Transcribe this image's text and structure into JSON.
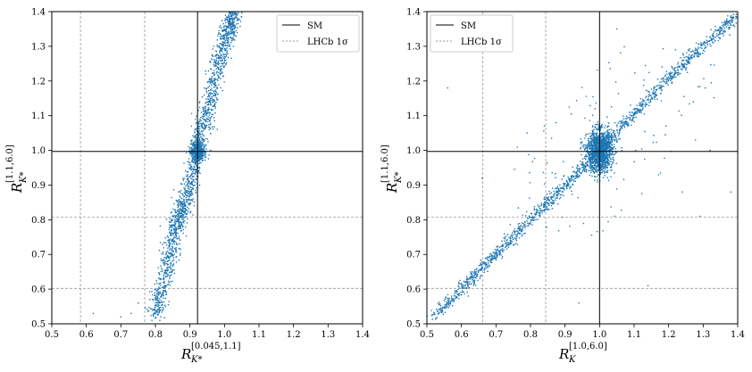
{
  "chart_data": [
    {
      "type": "scatter",
      "panel": "left",
      "xlabel": "R_{K*}^{[0.045,1.1]}",
      "ylabel": "R_{K*}^{[1.1,6.0]}",
      "xlim": [
        0.5,
        1.4
      ],
      "ylim": [
        0.5,
        1.4
      ],
      "xticks": [
        "0.5",
        "0.6",
        "0.7",
        "0.8",
        "0.9",
        "1.0",
        "1.1",
        "1.2",
        "1.3",
        "1.4"
      ],
      "yticks": [
        "0.5",
        "0.6",
        "0.7",
        "0.8",
        "0.9",
        "1.0",
        "1.1",
        "1.2",
        "1.3",
        "1.4"
      ],
      "sm_point": {
        "x": 0.922,
        "y": 0.997
      },
      "lhcb_1sigma": {
        "x": [
          0.583,
          0.769
        ],
        "y": [
          0.602,
          0.808
        ]
      },
      "point_color": "#1f77b4",
      "legend": {
        "placement": "top-right",
        "entries": [
          "SM",
          "LHCb 1σ"
        ]
      },
      "scatter_band": {
        "description": "narrow diagonal band",
        "y_at_x": [
          [
            0.8,
            0.52
          ],
          [
            0.86,
            0.78
          ],
          [
            0.9,
            0.9
          ],
          [
            0.922,
            1.0
          ],
          [
            0.96,
            1.15
          ],
          [
            1.0,
            1.32
          ],
          [
            1.03,
            1.4
          ]
        ]
      },
      "outliers": [
        [
          0.62,
          0.53
        ],
        [
          0.7,
          0.52
        ],
        [
          0.73,
          0.53
        ],
        [
          0.75,
          0.56
        ],
        [
          0.79,
          0.51
        ],
        [
          0.96,
          1.0
        ]
      ]
    },
    {
      "type": "scatter",
      "panel": "right",
      "xlabel": "R_K^{[1.0,6.0]}",
      "ylabel": "R_{K*}^{[1.1,6.0]}",
      "xlim": [
        0.5,
        1.4
      ],
      "ylim": [
        0.5,
        1.4
      ],
      "xticks": [
        "0.5",
        "0.6",
        "0.7",
        "0.8",
        "0.9",
        "1.0",
        "1.1",
        "1.2",
        "1.3",
        "1.4"
      ],
      "yticks": [
        "0.5",
        "0.6",
        "0.7",
        "0.8",
        "0.9",
        "1.0",
        "1.1",
        "1.2",
        "1.3",
        "1.4"
      ],
      "sm_point": {
        "x": 1.0,
        "y": 0.997
      },
      "lhcb_1sigma": {
        "x": [
          0.662,
          0.844
        ],
        "y": [
          0.602,
          0.808
        ]
      },
      "point_color": "#1f77b4",
      "legend": {
        "placement": "top-left",
        "entries": [
          "SM",
          "LHCb 1σ"
        ]
      },
      "scatter_band": {
        "description": "diagonal line through SM with dense cluster near (1.0, 1.0)",
        "y_at_x": [
          [
            0.52,
            0.52
          ],
          [
            0.7,
            0.7
          ],
          [
            0.9,
            0.9
          ],
          [
            1.0,
            1.0
          ],
          [
            1.2,
            1.21
          ],
          [
            1.4,
            1.39
          ]
        ]
      },
      "outliers": [
        [
          0.56,
          1.18
        ],
        [
          0.84,
          1.07
        ],
        [
          1.05,
          1.35
        ],
        [
          1.22,
          1.29
        ],
        [
          1.28,
          1.31
        ],
        [
          1.24,
          0.88
        ],
        [
          1.38,
          0.88
        ],
        [
          1.32,
          1.0
        ],
        [
          1.29,
          0.81
        ],
        [
          0.94,
          0.56
        ],
        [
          0.79,
          1.05
        ],
        [
          0.66,
          0.92
        ],
        [
          0.62,
          0.58
        ],
        [
          1.14,
          0.61
        ]
      ]
    }
  ],
  "legend": {
    "sm_label": "SM",
    "lhcb_label": "LHCb 1σ"
  },
  "axes": {
    "left": {
      "xlabel_main": "R",
      "xlabel_sub": "K*",
      "xlabel_sup": "[0.045,1.1]",
      "ylabel_main": "R",
      "ylabel_sub": "K*",
      "ylabel_sup": "[1.1,6.0]"
    },
    "right": {
      "xlabel_main": "R",
      "xlabel_sub": "K",
      "xlabel_sup": "[1.0,6.0]",
      "ylabel_main": "R",
      "ylabel_sub": "K*",
      "ylabel_sup": "[1.1,6.0]"
    }
  }
}
